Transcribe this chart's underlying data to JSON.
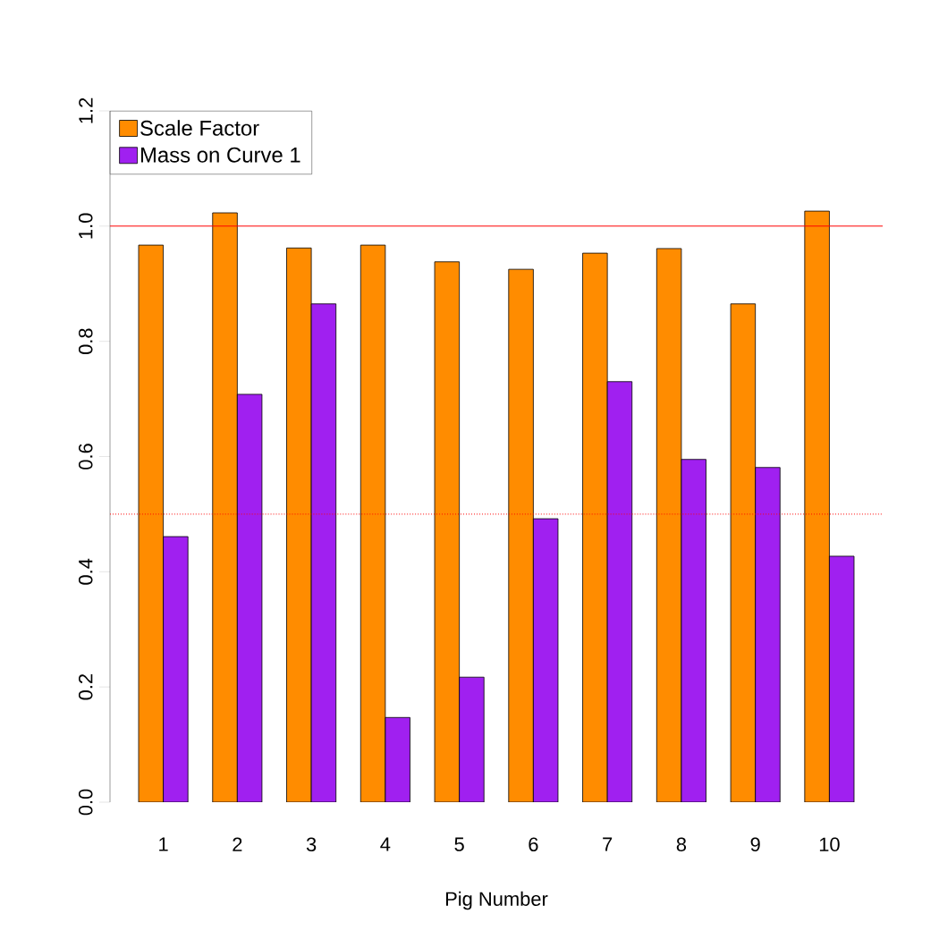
{
  "chart_data": {
    "type": "bar",
    "xlabel": "Pig Number",
    "categories": [
      "1",
      "2",
      "3",
      "4",
      "5",
      "6",
      "7",
      "8",
      "9",
      "10"
    ],
    "series": [
      {
        "name": "Scale Factor",
        "color": "#ff8c00",
        "values": [
          0.967,
          1.023,
          0.962,
          0.967,
          0.938,
          0.925,
          0.953,
          0.961,
          0.865,
          1.026
        ]
      },
      {
        "name": "Mass on Curve 1",
        "color": "#a020f0",
        "values": [
          0.461,
          0.708,
          0.865,
          0.147,
          0.217,
          0.492,
          0.73,
          0.595,
          0.581,
          0.427
        ]
      }
    ],
    "ylim": [
      0,
      1.2
    ],
    "yticks": [
      {
        "value": 0,
        "label": "0.0"
      },
      0.2,
      0.4,
      0.6,
      0.8,
      {
        "value": 1,
        "label": "1.0"
      },
      1.2
    ],
    "ref_lines": [
      {
        "axis": "y",
        "value": 1,
        "color": "#ff0000",
        "line_style": "solid"
      },
      {
        "axis": "y",
        "value": 0.5,
        "color": "#ff0000",
        "line_style": "dotted"
      }
    ],
    "legend": "top left",
    "grid": false
  }
}
